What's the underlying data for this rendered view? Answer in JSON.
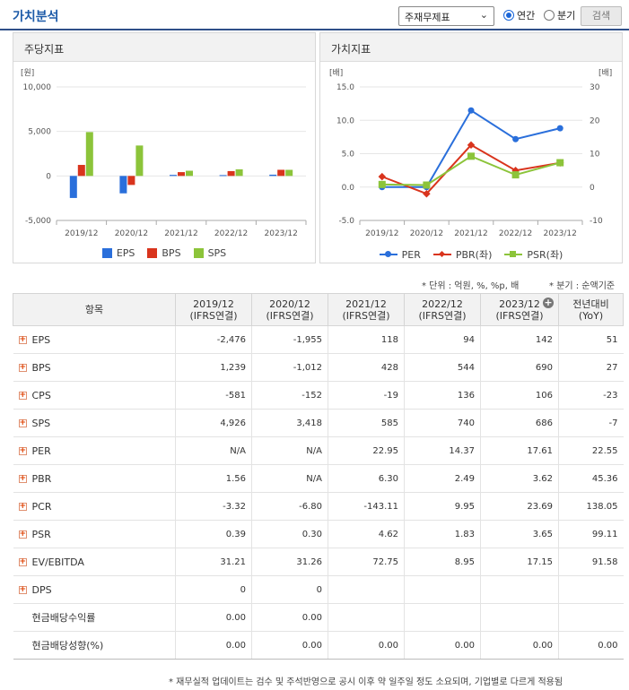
{
  "header": {
    "title": "가치분석",
    "select_value": "주재무제표",
    "radio_annual": "연간",
    "radio_quarter": "분기",
    "search_label": "검색"
  },
  "colors": {
    "blue": "#2a6fdb",
    "red": "#d9341d",
    "green": "#8cc43a"
  },
  "charts": {
    "left_title": "주당지표",
    "right_title": "가치지표"
  },
  "chart_data": [
    {
      "type": "bar",
      "title": "주당지표",
      "ylabel": "[원]",
      "categories": [
        "2019/12",
        "2020/12",
        "2021/12",
        "2022/12",
        "2023/12"
      ],
      "ylim": [
        -5000,
        10000
      ],
      "yticks": [
        "10,000",
        "5,000",
        "0",
        "-5,000"
      ],
      "series": [
        {
          "name": "EPS",
          "color": "#2a6fdb",
          "values": [
            -2476,
            -1955,
            118,
            94,
            142
          ]
        },
        {
          "name": "BPS",
          "color": "#d9341d",
          "values": [
            1239,
            -1012,
            428,
            544,
            690
          ]
        },
        {
          "name": "SPS",
          "color": "#8cc43a",
          "values": [
            4926,
            3418,
            585,
            740,
            686
          ]
        }
      ]
    },
    {
      "type": "line",
      "title": "가치지표",
      "ylabel_left": "[배]",
      "ylabel_right": "[배]",
      "categories": [
        "2019/12",
        "2020/12",
        "2021/12",
        "2022/12",
        "2023/12"
      ],
      "ylim_left": [
        -5,
        15
      ],
      "ylim_right": [
        -10,
        30
      ],
      "yticks_left": [
        "15.0",
        "10.0",
        "5.0",
        "0.0",
        "-5.0"
      ],
      "yticks_right": [
        "30",
        "20",
        "10",
        "0",
        "-10"
      ],
      "series": [
        {
          "name": "PER",
          "axis": "right",
          "color": "#2a6fdb",
          "marker": "circle",
          "values": [
            0,
            0,
            22.95,
            14.37,
            17.61
          ]
        },
        {
          "name": "PBR(좌)",
          "axis": "left",
          "color": "#d9341d",
          "marker": "diamond",
          "values": [
            1.56,
            -1.0,
            6.3,
            2.49,
            3.62
          ]
        },
        {
          "name": "PSR(좌)",
          "axis": "left",
          "color": "#8cc43a",
          "marker": "square",
          "values": [
            0.39,
            0.3,
            4.62,
            1.83,
            3.65
          ]
        }
      ]
    }
  ],
  "unit_note": "* 단위 : 억원, %, %p, 배",
  "period_note": "* 분기 : 순액기준",
  "table": {
    "header_item": "항목",
    "columns": [
      {
        "year": "2019/12",
        "sub": "(IFRS연결)"
      },
      {
        "year": "2020/12",
        "sub": "(IFRS연결)"
      },
      {
        "year": "2021/12",
        "sub": "(IFRS연결)"
      },
      {
        "year": "2022/12",
        "sub": "(IFRS연결)"
      },
      {
        "year": "2023/12",
        "sub": "(IFRS연결)"
      },
      {
        "year": "전년대비",
        "sub": "(YoY)"
      }
    ],
    "rows": [
      {
        "name": "EPS",
        "expand": true,
        "values": [
          "-2,476",
          "-1,955",
          "118",
          "94",
          "142",
          "51"
        ]
      },
      {
        "name": "BPS",
        "expand": true,
        "values": [
          "1,239",
          "-1,012",
          "428",
          "544",
          "690",
          "27"
        ]
      },
      {
        "name": "CPS",
        "expand": true,
        "values": [
          "-581",
          "-152",
          "-19",
          "136",
          "106",
          "-23"
        ]
      },
      {
        "name": "SPS",
        "expand": true,
        "values": [
          "4,926",
          "3,418",
          "585",
          "740",
          "686",
          "-7"
        ]
      },
      {
        "name": "PER",
        "expand": true,
        "values": [
          "N/A",
          "N/A",
          "22.95",
          "14.37",
          "17.61",
          "22.55"
        ]
      },
      {
        "name": "PBR",
        "expand": true,
        "values": [
          "1.56",
          "N/A",
          "6.30",
          "2.49",
          "3.62",
          "45.36"
        ]
      },
      {
        "name": "PCR",
        "expand": true,
        "values": [
          "-3.32",
          "-6.80",
          "-143.11",
          "9.95",
          "23.69",
          "138.05"
        ]
      },
      {
        "name": "PSR",
        "expand": true,
        "values": [
          "0.39",
          "0.30",
          "4.62",
          "1.83",
          "3.65",
          "99.11"
        ]
      },
      {
        "name": "EV/EBITDA",
        "expand": true,
        "values": [
          "31.21",
          "31.26",
          "72.75",
          "8.95",
          "17.15",
          "91.58"
        ]
      },
      {
        "name": "DPS",
        "expand": true,
        "values": [
          "0",
          "0",
          "",
          "",
          "",
          ""
        ]
      },
      {
        "name": "현금배당수익률",
        "expand": false,
        "values": [
          "0.00",
          "0.00",
          "",
          "",
          "",
          ""
        ]
      },
      {
        "name": "현금배당성향(%)",
        "expand": false,
        "values": [
          "0.00",
          "0.00",
          "0.00",
          "0.00",
          "0.00",
          "0.00"
        ]
      }
    ]
  },
  "footnote": "* 재무실적 업데이트는 검수 및 주석반영으로 공시 이후 약 일주일 정도 소요되며, 기업별로 다르게 적용됨"
}
